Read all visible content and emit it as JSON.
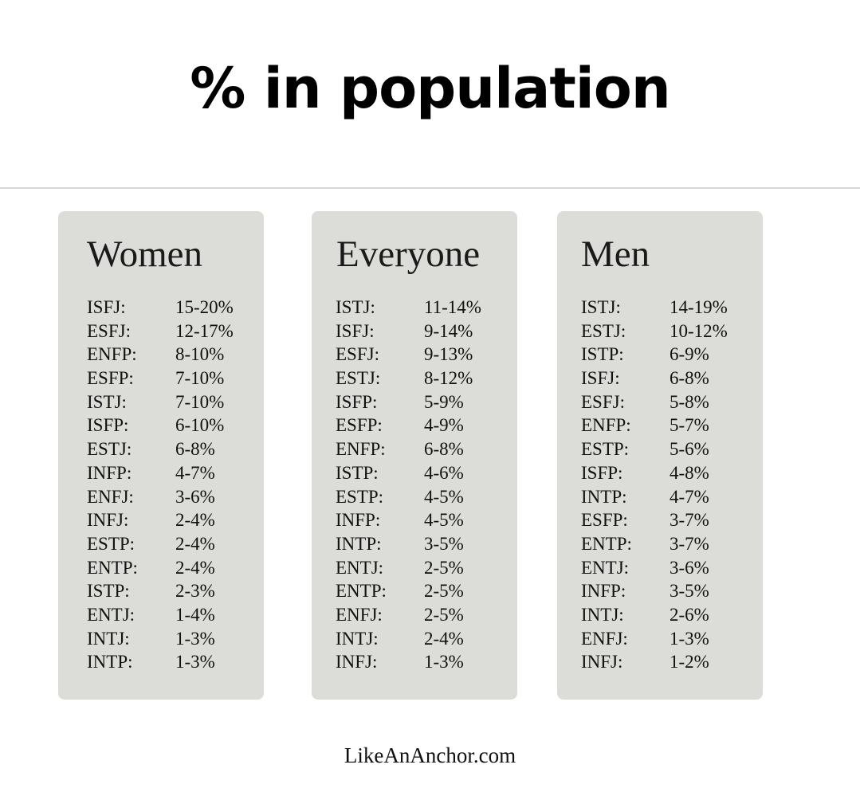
{
  "title": "% in population",
  "footer": "LikeAnAnchor.com",
  "colors": {
    "card_background": "#dcdcd8",
    "page_background": "#ffffff",
    "text": "#111111"
  },
  "columns": [
    {
      "heading": "Women",
      "rows": [
        {
          "type": "ISFJ:",
          "pct": "15-20%"
        },
        {
          "type": "ESFJ:",
          "pct": "12-17%"
        },
        {
          "type": "ENFP:",
          "pct": "8-10%"
        },
        {
          "type": "ESFP:",
          "pct": "7-10%"
        },
        {
          "type": "ISTJ:",
          "pct": "7-10%"
        },
        {
          "type": "ISFP:",
          "pct": "6-10%"
        },
        {
          "type": "ESTJ:",
          "pct": "6-8%"
        },
        {
          "type": "INFP:",
          "pct": "4-7%"
        },
        {
          "type": "ENFJ:",
          "pct": "3-6%"
        },
        {
          "type": "INFJ:",
          "pct": "2-4%"
        },
        {
          "type": "ESTP:",
          "pct": "2-4%"
        },
        {
          "type": "ENTP:",
          "pct": "2-4%"
        },
        {
          "type": "ISTP:",
          "pct": "2-3%"
        },
        {
          "type": "ENTJ:",
          "pct": "1-4%"
        },
        {
          "type": "INTJ:",
          "pct": "1-3%"
        },
        {
          "type": "INTP:",
          "pct": "1-3%"
        }
      ]
    },
    {
      "heading": "Everyone",
      "rows": [
        {
          "type": "ISTJ:",
          "pct": "11-14%"
        },
        {
          "type": "ISFJ:",
          "pct": "9-14%"
        },
        {
          "type": "ESFJ:",
          "pct": "9-13%"
        },
        {
          "type": "ESTJ:",
          "pct": "8-12%"
        },
        {
          "type": "ISFP:",
          "pct": "5-9%"
        },
        {
          "type": "ESFP:",
          "pct": "4-9%"
        },
        {
          "type": "ENFP:",
          "pct": "6-8%"
        },
        {
          "type": "ISTP:",
          "pct": "4-6%"
        },
        {
          "type": "ESTP:",
          "pct": "4-5%"
        },
        {
          "type": "INFP:",
          "pct": "4-5%"
        },
        {
          "type": "INTP:",
          "pct": "3-5%"
        },
        {
          "type": "ENTJ:",
          "pct": "2-5%"
        },
        {
          "type": "ENTP:",
          "pct": "2-5%"
        },
        {
          "type": "ENFJ:",
          "pct": "2-5%"
        },
        {
          "type": "INTJ:",
          "pct": "2-4%"
        },
        {
          "type": "INFJ:",
          "pct": "1-3%"
        }
      ]
    },
    {
      "heading": "Men",
      "rows": [
        {
          "type": "ISTJ:",
          "pct": "14-19%"
        },
        {
          "type": "ESTJ:",
          "pct": "10-12%"
        },
        {
          "type": "ISTP:",
          "pct": "6-9%"
        },
        {
          "type": "ISFJ:",
          "pct": "6-8%"
        },
        {
          "type": "ESFJ:",
          "pct": "5-8%"
        },
        {
          "type": "ENFP:",
          "pct": "5-7%"
        },
        {
          "type": "ESTP:",
          "pct": "5-6%"
        },
        {
          "type": "ISFP:",
          "pct": "4-8%"
        },
        {
          "type": "INTP:",
          "pct": "4-7%"
        },
        {
          "type": "ESFP:",
          "pct": "3-7%"
        },
        {
          "type": "ENTP:",
          "pct": "3-7%"
        },
        {
          "type": "ENTJ:",
          "pct": "3-6%"
        },
        {
          "type": "INFP:",
          "pct": "3-5%"
        },
        {
          "type": "INTJ:",
          "pct": "2-6%"
        },
        {
          "type": "ENFJ:",
          "pct": "1-3%"
        },
        {
          "type": "INFJ:",
          "pct": "1-2%"
        }
      ]
    }
  ]
}
